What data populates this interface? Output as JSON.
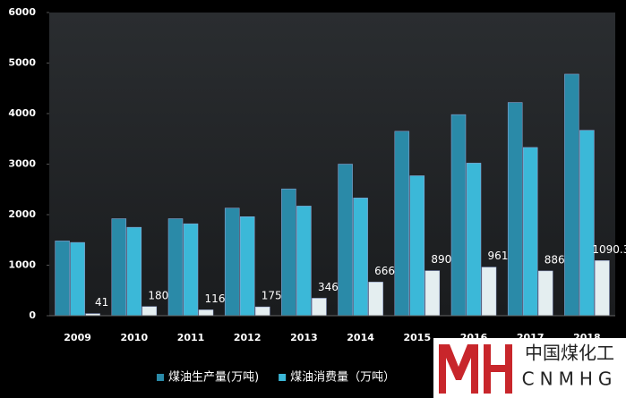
{
  "chart_data": {
    "type": "bar",
    "categories": [
      "2009",
      "2010",
      "2011",
      "2012",
      "2013",
      "2014",
      "2015",
      "2016",
      "2017",
      "2018"
    ],
    "series": [
      {
        "name": "煤油生产量(万吨)",
        "color": "#2a8aa8",
        "values": [
          1480,
          1920,
          1920,
          2130,
          2510,
          3000,
          3650,
          3980,
          4220,
          4780
        ]
      },
      {
        "name": "煤油消费量（万吨）",
        "color": "#3bb8d8",
        "values": [
          1450,
          1750,
          1820,
          1960,
          2170,
          2330,
          2770,
          3020,
          3330,
          3670
        ]
      },
      {
        "color": "#e4eef0",
        "values": [
          41,
          180,
          116,
          175,
          346,
          666,
          890,
          961,
          886,
          1090.3
        ],
        "data_labels": true
      }
    ],
    "ylim": [
      0,
      6000
    ],
    "yticks": [
      0,
      1000,
      2000,
      3000,
      4000,
      5000,
      6000
    ],
    "grid": false
  },
  "watermark": {
    "text": "中国煤化工",
    "sub": "CNMHG"
  }
}
